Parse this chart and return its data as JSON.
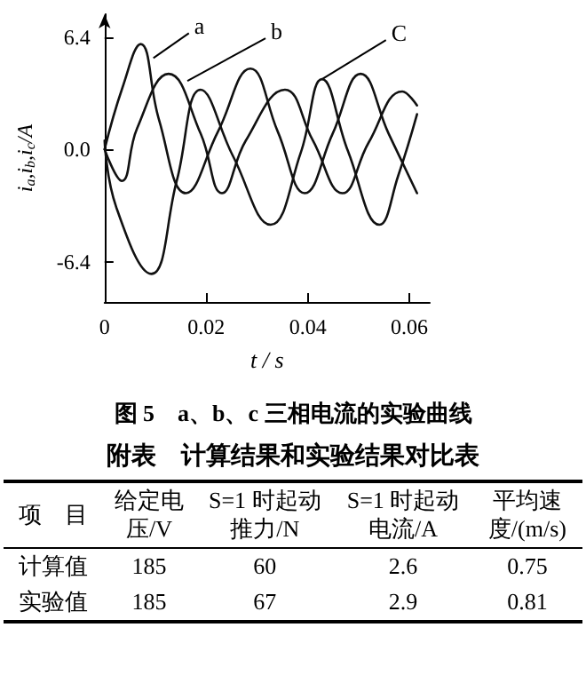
{
  "chart_data": [
    {
      "type": "line",
      "xlabel": "t / s",
      "ylabel": "i$_{a}$,i$_{b}$,i$_{c}$/A",
      "xlim": [
        0,
        0.064
      ],
      "ylim": [
        -8.7,
        7.7
      ],
      "xticks": [
        0,
        0.02,
        0.04,
        0.06
      ],
      "yticks": [
        {
          "value": 6.4,
          "label": "6.4"
        },
        {
          "value": 0,
          "label": "0.0"
        },
        {
          "value": -6.4,
          "label": "-6.4"
        }
      ],
      "grid": false,
      "marker": "none",
      "line_style": "solid",
      "series": [
        {
          "color": "#111111",
          "x": [
            0,
            0.0035,
            0.0071,
            0.0107,
            0.016,
            0.0223,
            0.0287,
            0.0341,
            0.0394,
            0.0449,
            0.0504,
            0.0559,
            0.0615
          ],
          "values": [
            0,
            3.5,
            6.0,
            1.7,
            -2.5,
            1.0,
            4.6,
            1.0,
            -2.5,
            0.9,
            4.3,
            0.9,
            -2.5
          ]
        },
        {
          "color": "#111111",
          "x": [
            0,
            0.0034,
            0.0064,
            0.0126,
            0.0189,
            0.0231,
            0.0278,
            0.0355,
            0.041,
            0.0468,
            0.052,
            0.0586,
            0.0615
          ],
          "values": [
            0,
            -1.8,
            1.2,
            4.3,
            0.9,
            -2.5,
            0.5,
            3.4,
            0.5,
            -2.5,
            0.4,
            3.3,
            2.5
          ]
        },
        {
          "color": "#111111",
          "x": [
            0,
            0.0023,
            0.0092,
            0.0142,
            0.0189,
            0.0253,
            0.0327,
            0.0386,
            0.0428,
            0.0479,
            0.0541,
            0.0578,
            0.0615
          ],
          "values": [
            0.5,
            -3.3,
            -7.1,
            -1.8,
            3.4,
            -0.4,
            -4.3,
            -0.2,
            4.0,
            -0.1,
            -4.3,
            -1.5,
            2.0
          ]
        }
      ],
      "annotations": [
        {
          "text": "a",
          "x": 0.0096,
          "y": 5.2
        },
        {
          "text": "b",
          "x": 0.0163,
          "y": 3.9
        },
        {
          "text": "C",
          "x": 0.0428,
          "y": 4.0
        },
        "图 5　a、b、c 三相电流的实验曲线"
      ]
    },
    {
      "type": "other",
      "title": "附表　计算结果和实验结果对比表",
      "annotations": [
        "项　目",
        "给定电压/V",
        "S=1 时起动推力/N",
        "S=1 时起动电流/A",
        "平均速度/(m/s)",
        "计算值",
        "185",
        "60",
        "2.6",
        "0.75",
        "实验值",
        "185",
        "67",
        "2.9",
        "0.81"
      ]
    }
  ]
}
